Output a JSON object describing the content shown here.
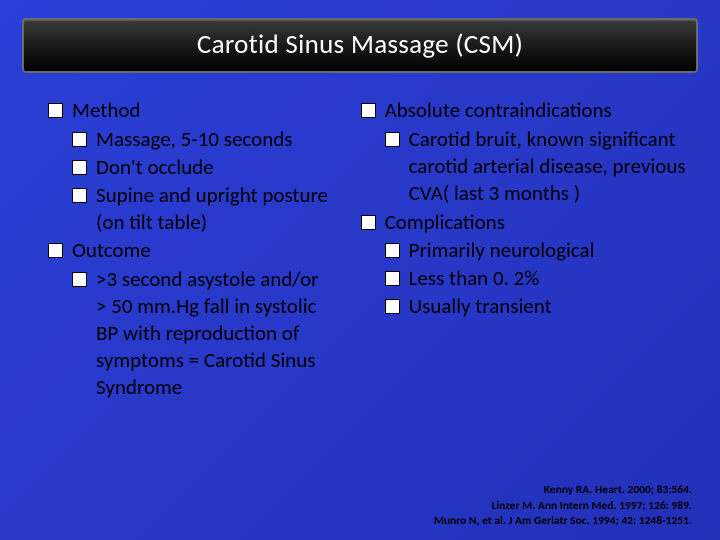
{
  "title": "Carotid Sinus Massage (CSM)",
  "left_column": [
    {
      "label": "Method",
      "items": [
        "Massage, 5-10 seconds",
        "Don't occlude",
        "Supine and upright posture (on tilt table)"
      ]
    },
    {
      "label": "Outcome",
      "items": [
        ">3 second asystole and/or    > 50 mm.Hg fall in systolic BP with reproduction of symptoms = Carotid Sinus Syndrome"
      ]
    }
  ],
  "right_column": [
    {
      "label": "Absolute contraindications",
      "items": [
        "Carotid bruit, known significant carotid arterial disease, previous CVA( last 3 months )"
      ]
    },
    {
      "label": "Complications",
      "items": [
        "Primarily neurological",
        "Less than 0. 2%",
        "Usually transient"
      ]
    }
  ],
  "references": [
    "Kenny RA. Heart. 2000; 83:564.",
    "Linzer M. Ann Intern Med. 1997; 126: 989.",
    "Munro N, et al. J Am Geriatr Soc. 1994; 42: 1248-1251."
  ],
  "colors": {
    "bg_gradient_start": "#2a3fd6",
    "bg_gradient_end": "#2230b8",
    "title_bg": "#000000",
    "title_text": "#ffffff",
    "body_text": "#000000",
    "bullet_border": "#000000",
    "bullet_fill": "#ffffff"
  },
  "fonts": {
    "title_size_pt": 20,
    "body_size_pt": 16,
    "ref_size_pt": 9,
    "family": "Calibri"
  }
}
